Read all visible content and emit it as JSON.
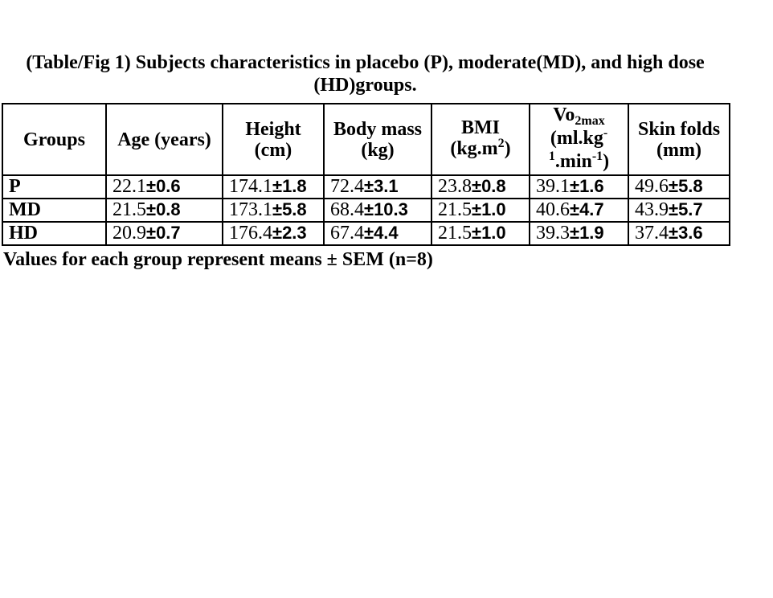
{
  "figure": {
    "title_line1": "(Table/Fig 1) Subjects characteristics in placebo (P), moderate(MD), and high dose",
    "title_line2": "(HD)groups.",
    "footnote": "Values for each group represent means ± SEM (n=8)"
  },
  "table": {
    "columns": [
      {
        "id": "groups",
        "lines": [
          [
            {
              "t": "Groups"
            }
          ]
        ]
      },
      {
        "id": "age",
        "lines": [
          [
            {
              "t": "Age (years)"
            }
          ]
        ]
      },
      {
        "id": "height",
        "lines": [
          [
            {
              "t": "Height"
            }
          ],
          [
            {
              "t": "(cm)"
            }
          ]
        ]
      },
      {
        "id": "body-mass",
        "lines": [
          [
            {
              "t": "Body mass"
            }
          ],
          [
            {
              "t": "(kg)"
            }
          ]
        ]
      },
      {
        "id": "bmi",
        "lines": [
          [
            {
              "t": "BMI"
            }
          ],
          [
            {
              "t": "(kg.m"
            },
            {
              "t": "2",
              "s": "sup"
            },
            {
              "t": ")"
            }
          ]
        ]
      },
      {
        "id": "vo2max",
        "lines": [
          [
            {
              "t": "Vo"
            },
            {
              "t": "2max",
              "s": "sub"
            }
          ],
          [
            {
              "t": "(ml.kg"
            },
            {
              "t": "-",
              "s": "sup"
            }
          ],
          [
            {
              "t": "1",
              "s": "sup"
            },
            {
              "t": ".min"
            },
            {
              "t": "-1",
              "s": "sup"
            },
            {
              "t": ")"
            }
          ]
        ]
      },
      {
        "id": "skin-folds",
        "lines": [
          [
            {
              "t": "Skin folds"
            }
          ],
          [
            {
              "t": "(mm)"
            }
          ]
        ]
      }
    ],
    "rows": [
      {
        "group": "P",
        "values": [
          "22.1±0.6",
          "174.1±1.8",
          "72.4±3.1",
          "23.8±0.8",
          "39.1±1.6",
          "49.6±5.8"
        ]
      },
      {
        "group": "MD",
        "values": [
          "21.5±0.8",
          "173.1±5.8",
          "68.4±10.3",
          "21.5±1.0",
          "40.6±4.7",
          "43.9±5.7"
        ]
      },
      {
        "group": "HD",
        "values": [
          "20.9±0.7",
          "176.4±2.3",
          "67.4±4.4",
          "21.5±1.0",
          "39.3±1.9",
          "37.4±3.6"
        ]
      }
    ]
  },
  "colors": {
    "text": "#000000",
    "background": "#ffffff",
    "border": "#000000"
  }
}
